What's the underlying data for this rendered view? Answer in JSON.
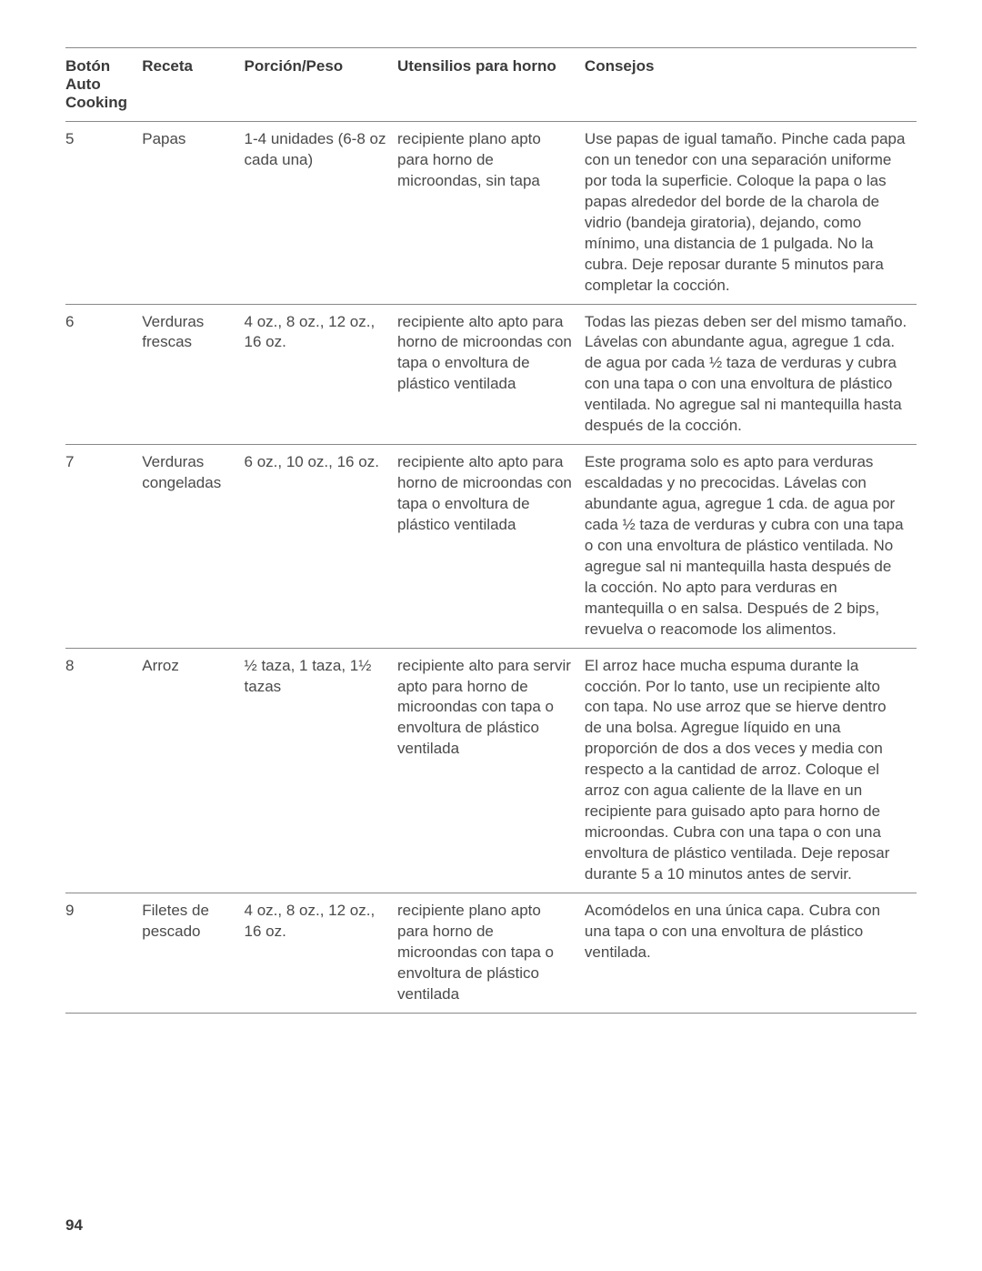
{
  "table": {
    "columns": [
      {
        "label": "Botón Auto Cooking",
        "width": "9%"
      },
      {
        "label": "Receta",
        "width": "12%"
      },
      {
        "label": "Porción/Peso",
        "width": "18%"
      },
      {
        "label": "Utensilios para horno",
        "width": "22%"
      },
      {
        "label": "Consejos",
        "width": "39%"
      }
    ],
    "rows": [
      {
        "button": "5",
        "recipe": "Papas",
        "portion": "1-4 unidades (6-8 oz cada una)",
        "utensils": "recipiente plano apto para horno de microondas, sin tapa",
        "tips": "Use papas de igual tamaño. Pinche cada papa con un tenedor con una separación uniforme por toda la superficie. Coloque la papa o las papas alrededor del borde de la charola de vidrio (bandeja giratoria), dejando, como mínimo, una distancia de 1 pulgada. No la cubra. Deje reposar durante 5 minutos para completar la cocción."
      },
      {
        "button": "6",
        "recipe": "Verduras frescas",
        "portion": "4 oz., 8 oz., 12 oz., 16 oz.",
        "utensils": "recipiente alto apto para horno de microondas con tapa o envoltura de plástico ventilada",
        "tips": "Todas las piezas deben ser del mismo tamaño. Lávelas con abundante agua, agregue 1 cda. de agua por cada ½ taza de verduras y cubra con una tapa o con una envoltura de plástico ventilada. No agregue sal ni mantequilla hasta después de la cocción."
      },
      {
        "button": "7",
        "recipe": "Verduras congeladas",
        "portion": "6 oz., 10 oz., 16 oz.",
        "utensils": "recipiente alto apto para horno de microondas con tapa o envoltura de plástico ventilada",
        "tips": "Este programa solo es apto para verduras escaldadas y no precocidas. Lávelas con abundante agua, agregue 1 cda. de agua por cada ½ taza de verduras y cubra con una tapa o con una envoltura de plástico ventilada. No agregue sal ni mantequilla hasta después de la cocción. No apto para verduras en mantequilla o en salsa. Después de 2 bips, revuelva o reacomode los alimentos."
      },
      {
        "button": "8",
        "recipe": "Arroz",
        "portion": "½ taza, 1 taza, 1½ tazas",
        "utensils": "recipiente alto para servir apto para horno de microondas con tapa o envoltura de plástico ventilada",
        "tips": "El arroz hace mucha espuma durante la cocción. Por lo tanto, use un recipiente alto con tapa. No use arroz que se hierve dentro de una bolsa. Agregue líquido en una proporción de dos a dos veces y media con respecto a la cantidad de arroz. Coloque el arroz con agua caliente de la llave en un recipiente para guisado apto para horno de microondas. Cubra con una tapa o con una envoltura de plástico ventilada. Deje reposar durante 5 a 10 minutos antes de servir."
      },
      {
        "button": "9",
        "recipe": "Filetes de pescado",
        "portion": "4 oz., 8 oz., 12 oz., 16 oz.",
        "utensils": "recipiente plano apto para horno de microondas con tapa o envoltura de plástico ventilada",
        "tips": "Acomódelos en una única capa. Cubra con una tapa o con una envoltura de plástico ventilada."
      }
    ],
    "header_fontsize": 17,
    "body_fontsize": 17,
    "text_color": "#4a4a4a",
    "header_color": "#3a3a3a",
    "border_color": "#888888",
    "background_color": "#ffffff"
  },
  "page_number": "94"
}
